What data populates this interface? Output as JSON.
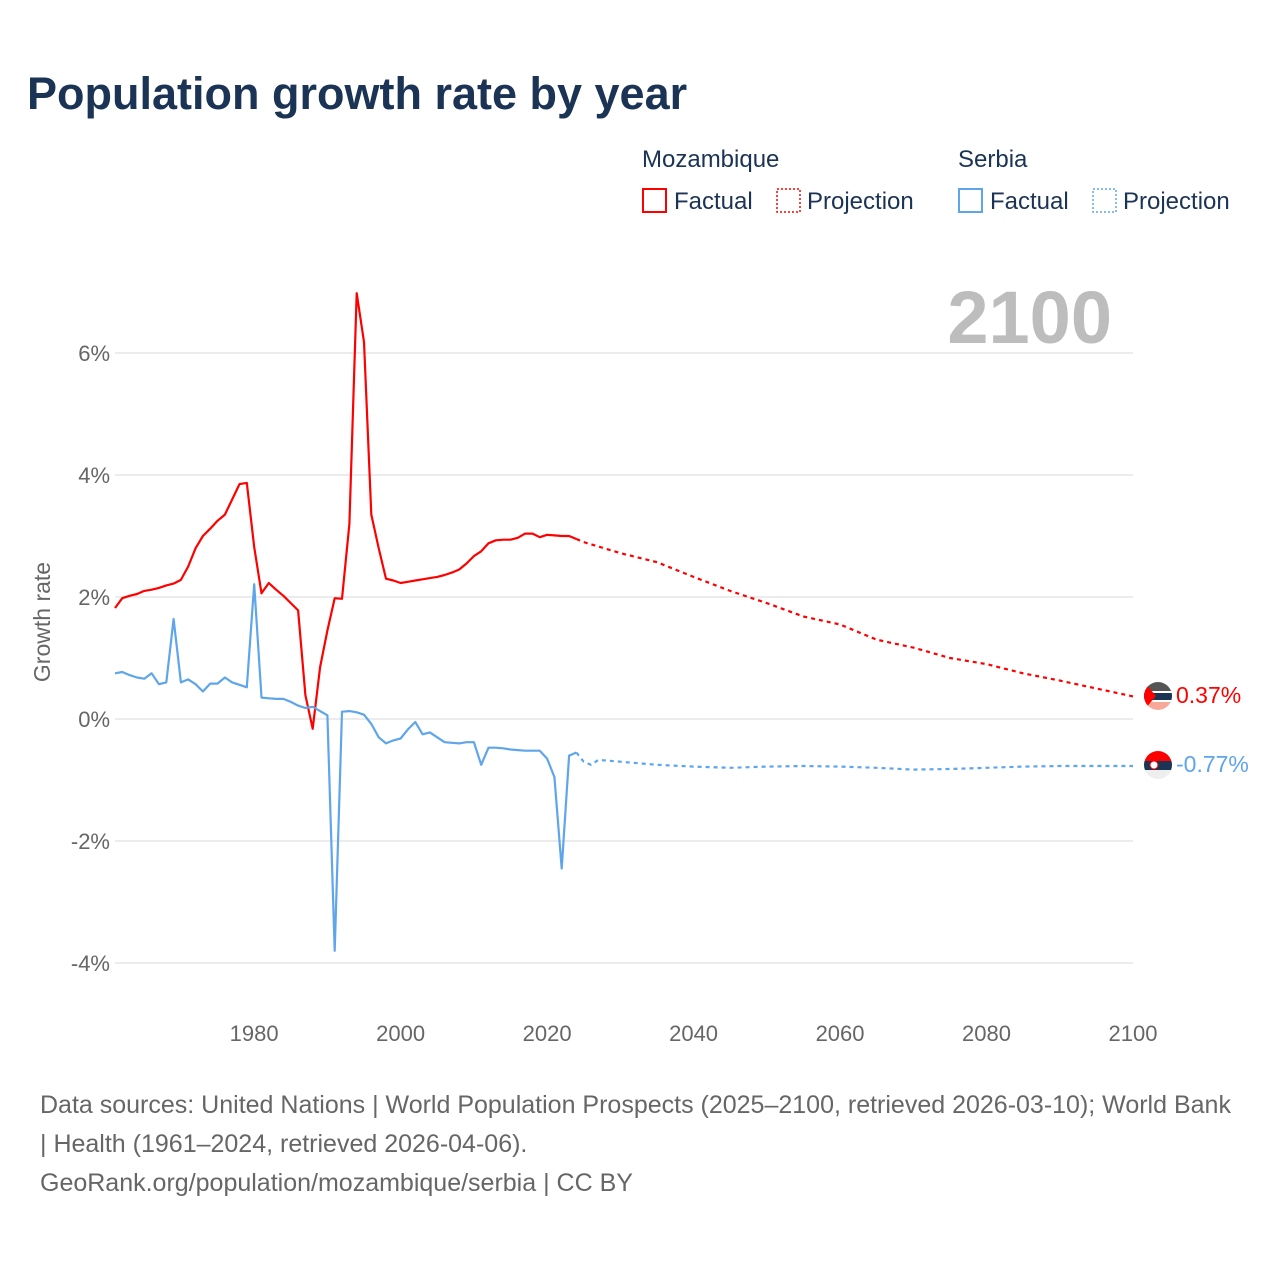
{
  "title": "Population growth rate by year",
  "colors": {
    "mozambique": "#ff0000",
    "serbia": "#5fa5ea",
    "grid": "#e6e6e6",
    "tick": "#666666",
    "year": "#bdbdbd"
  },
  "legend": {
    "groups": [
      {
        "name": "Mozambique",
        "factual": "Factual",
        "projection": "Projection"
      },
      {
        "name": "Serbia",
        "factual": "Factual",
        "projection": "Projection"
      }
    ]
  },
  "year_display": "2100",
  "end_labels": {
    "mozambique": "0.37%",
    "serbia": "-0.77%"
  },
  "footer": {
    "line1": "Data sources: United Nations | World Population Prospects (2025–2100, retrieved 2026-03-10); World Bank | Health (1961–2024, retrieved 2026-04-06).",
    "line2": "GeoRank.org/population/mozambique/serbia | CC BY"
  },
  "chart_data": {
    "type": "line",
    "title": "Population growth rate by year",
    "xlabel": "",
    "ylabel": "Growth rate",
    "xlim": [
      1961,
      2100
    ],
    "ylim": [
      -4.6,
      7.3
    ],
    "xticks": [
      1980,
      2000,
      2020,
      2040,
      2060,
      2080,
      2100
    ],
    "xtick_labels": [
      "1980",
      "2000",
      "2020",
      "2040",
      "2060",
      "2080",
      "2100"
    ],
    "yticks": [
      -4,
      -2,
      0,
      2,
      4,
      6
    ],
    "ytick_labels": [
      "-4%",
      "-2%",
      "0%",
      "2%",
      "4%",
      "6%"
    ],
    "grid": true,
    "legend_position": "top-right",
    "series": [
      {
        "name": "Mozambique Factual",
        "style": "solid",
        "color_key": "mozambique",
        "x_start": 1961,
        "values": [
          1.82,
          1.98,
          2.02,
          2.05,
          2.1,
          2.12,
          2.15,
          2.19,
          2.22,
          2.28,
          2.5,
          2.8,
          3.0,
          3.12,
          3.25,
          3.35,
          3.6,
          3.85,
          3.87,
          2.82,
          2.06,
          2.23,
          2.12,
          2.02,
          1.9,
          1.78,
          0.39,
          -0.16,
          0.85,
          1.45,
          1.98,
          1.97,
          3.2,
          6.98,
          6.18,
          3.35,
          2.8,
          2.3,
          2.27,
          2.23,
          2.25,
          2.27,
          2.29,
          2.31,
          2.33,
          2.36,
          2.4,
          2.45,
          2.55,
          2.67,
          2.75,
          2.88,
          2.93,
          2.94,
          2.94,
          2.97,
          3.04,
          3.04,
          2.98,
          3.02,
          3.01,
          3.0,
          3.0,
          2.95
        ]
      },
      {
        "name": "Mozambique Projection",
        "style": "dotted",
        "color_key": "mozambique",
        "x": [
          2024,
          2025,
          2030,
          2035,
          2040,
          2045,
          2050,
          2055,
          2060,
          2065,
          2070,
          2075,
          2080,
          2085,
          2090,
          2095,
          2100
        ],
        "values": [
          2.95,
          2.9,
          2.72,
          2.57,
          2.33,
          2.1,
          1.9,
          1.68,
          1.55,
          1.3,
          1.17,
          1.0,
          0.9,
          0.75,
          0.63,
          0.5,
          0.37
        ]
      },
      {
        "name": "Serbia Factual",
        "style": "solid",
        "color_key": "serbia",
        "x_start": 1961,
        "values": [
          0.75,
          0.77,
          0.72,
          0.68,
          0.66,
          0.75,
          0.57,
          0.6,
          1.64,
          0.6,
          0.65,
          0.57,
          0.45,
          0.58,
          0.58,
          0.68,
          0.6,
          0.56,
          0.52,
          2.21,
          0.35,
          0.34,
          0.33,
          0.33,
          0.28,
          0.22,
          0.18,
          0.2,
          0.13,
          0.06,
          -3.8,
          0.12,
          0.13,
          0.11,
          0.07,
          -0.08,
          -0.3,
          -0.4,
          -0.35,
          -0.32,
          -0.17,
          -0.05,
          -0.25,
          -0.22,
          -0.3,
          -0.38,
          -0.39,
          -0.4,
          -0.38,
          -0.38,
          -0.75,
          -0.47,
          -0.47,
          -0.48,
          -0.5,
          -0.51,
          -0.52,
          -0.52,
          -0.52,
          -0.65,
          -0.95,
          -2.45,
          -0.6,
          -0.55
        ]
      },
      {
        "name": "Serbia Projection",
        "style": "dotted",
        "color_key": "serbia",
        "x": [
          2024,
          2025,
          2026,
          2027,
          2030,
          2035,
          2040,
          2045,
          2050,
          2055,
          2060,
          2065,
          2070,
          2075,
          2080,
          2085,
          2090,
          2095,
          2100
        ],
        "values": [
          -0.55,
          -0.7,
          -0.75,
          -0.67,
          -0.7,
          -0.75,
          -0.78,
          -0.8,
          -0.78,
          -0.77,
          -0.78,
          -0.8,
          -0.83,
          -0.82,
          -0.8,
          -0.78,
          -0.77,
          -0.77,
          -0.77
        ]
      }
    ]
  }
}
